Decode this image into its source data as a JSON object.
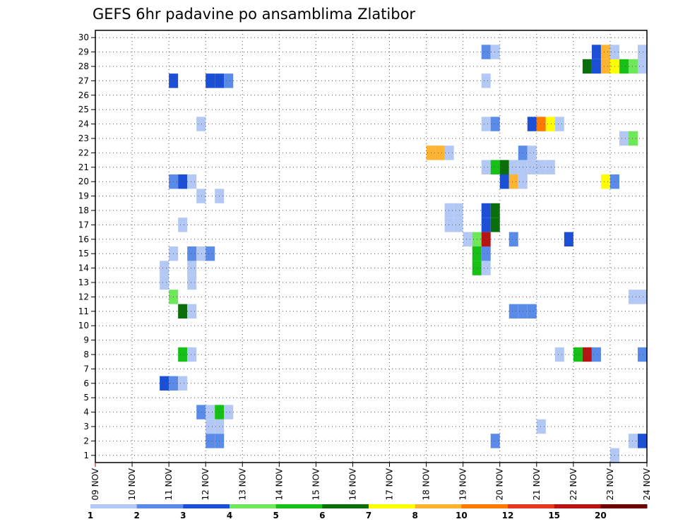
{
  "chart_data": {
    "type": "heatmap",
    "title": "GEFS 6hr padavine po ansamblima Zlatibor",
    "x_tick_labels": [
      "09 NOV",
      "10 NOV",
      "11 NOV",
      "12 NOV",
      "13 NOV",
      "14 NOV",
      "15 NOV",
      "16 NOV",
      "17 NOV",
      "18 NOV",
      "19 NOV",
      "20 NOV",
      "21 NOV",
      "22 NOV",
      "23 NOV",
      "24 NOV"
    ],
    "y_tick_labels": [
      "1",
      "2",
      "3",
      "4",
      "5",
      "6",
      "7",
      "8",
      "9",
      "10",
      "11",
      "12",
      "13",
      "14",
      "15",
      "16",
      "17",
      "18",
      "19",
      "20",
      "21",
      "22",
      "23",
      "24",
      "25",
      "26",
      "27",
      "28",
      "29",
      "30"
    ],
    "xlim_days": [
      0,
      15
    ],
    "ylim": [
      0.5,
      30.5
    ],
    "grid": true,
    "colorbar": {
      "labels": [
        "1",
        "2",
        "3",
        "4",
        "5",
        "6",
        "7",
        "8",
        "10",
        "12",
        "15",
        "20"
      ],
      "colors": [
        "#b3c8f5",
        "#5b8be8",
        "#1a4fd6",
        "#6ee85a",
        "#16c016",
        "#0a6e0a",
        "#ffff00",
        "#ffb431",
        "#ff7a00",
        "#e63a1e",
        "#b81414",
        "#6e0000"
      ]
    },
    "cells": [
      {
        "day": 2.0,
        "m": 27,
        "c": "#1a4fd6"
      },
      {
        "day": 3.0,
        "m": 27,
        "c": "#1a4fd6"
      },
      {
        "day": 3.25,
        "m": 27,
        "c": "#1a4fd6"
      },
      {
        "day": 3.5,
        "m": 27,
        "c": "#5b8be8"
      },
      {
        "day": 2.75,
        "m": 24,
        "c": "#b3c8f5"
      },
      {
        "day": 2.0,
        "m": 20,
        "c": "#5b8be8"
      },
      {
        "day": 2.25,
        "m": 20,
        "c": "#1a4fd6"
      },
      {
        "day": 2.5,
        "m": 20,
        "c": "#b3c8f5"
      },
      {
        "day": 2.75,
        "m": 19,
        "c": "#b3c8f5"
      },
      {
        "day": 3.25,
        "m": 19,
        "c": "#b3c8f5"
      },
      {
        "day": 2.25,
        "m": 17,
        "c": "#b3c8f5"
      },
      {
        "day": 2.0,
        "m": 15,
        "c": "#b3c8f5"
      },
      {
        "day": 2.5,
        "m": 15,
        "c": "#5b8be8"
      },
      {
        "day": 2.75,
        "m": 15,
        "c": "#b3c8f5"
      },
      {
        "day": 3.0,
        "m": 15,
        "c": "#5b8be8"
      },
      {
        "day": 1.75,
        "m": 14,
        "c": "#b3c8f5"
      },
      {
        "day": 2.5,
        "m": 14,
        "c": "#b3c8f5"
      },
      {
        "day": 1.75,
        "m": 13,
        "c": "#b3c8f5"
      },
      {
        "day": 2.5,
        "m": 13,
        "c": "#b3c8f5"
      },
      {
        "day": 2.0,
        "m": 12,
        "c": "#6ee85a"
      },
      {
        "day": 2.25,
        "m": 11,
        "c": "#0a6e0a"
      },
      {
        "day": 2.5,
        "m": 11,
        "c": "#b3c8f5"
      },
      {
        "day": 2.25,
        "m": 8,
        "c": "#16c016"
      },
      {
        "day": 2.5,
        "m": 8,
        "c": "#b3c8f5"
      },
      {
        "day": 1.75,
        "m": 6,
        "c": "#1a4fd6"
      },
      {
        "day": 2.0,
        "m": 6,
        "c": "#5b8be8"
      },
      {
        "day": 2.25,
        "m": 6,
        "c": "#b3c8f5"
      },
      {
        "day": 2.75,
        "m": 4,
        "c": "#5b8be8"
      },
      {
        "day": 3.0,
        "m": 4,
        "c": "#b3c8f5"
      },
      {
        "day": 3.25,
        "m": 4,
        "c": "#16c016"
      },
      {
        "day": 3.5,
        "m": 4,
        "c": "#b3c8f5"
      },
      {
        "day": 3.0,
        "m": 3,
        "c": "#b3c8f5"
      },
      {
        "day": 3.25,
        "m": 3,
        "c": "#b3c8f5"
      },
      {
        "day": 3.0,
        "m": 2,
        "c": "#5b8be8"
      },
      {
        "day": 3.25,
        "m": 2,
        "c": "#5b8be8"
      },
      {
        "day": 9.0,
        "m": 22,
        "c": "#ffb431"
      },
      {
        "day": 9.25,
        "m": 22,
        "c": "#ffb431"
      },
      {
        "day": 9.5,
        "m": 22,
        "c": "#b3c8f5"
      },
      {
        "day": 9.5,
        "m": 18,
        "c": "#b3c8f5"
      },
      {
        "day": 9.75,
        "m": 18,
        "c": "#b3c8f5"
      },
      {
        "day": 9.5,
        "m": 17,
        "c": "#b3c8f5"
      },
      {
        "day": 9.75,
        "m": 17,
        "c": "#b3c8f5"
      },
      {
        "day": 10.0,
        "m": 16,
        "c": "#b3c8f5"
      },
      {
        "day": 10.25,
        "m": 16,
        "c": "#6ee85a"
      },
      {
        "day": 10.5,
        "m": 16,
        "c": "#b81414"
      },
      {
        "day": 10.5,
        "m": 18,
        "c": "#1a4fd6"
      },
      {
        "day": 10.75,
        "m": 18,
        "c": "#0a6e0a"
      },
      {
        "day": 10.5,
        "m": 17,
        "c": "#1a4fd6"
      },
      {
        "day": 10.75,
        "m": 17,
        "c": "#0a6e0a"
      },
      {
        "day": 10.25,
        "m": 15,
        "c": "#16c016"
      },
      {
        "day": 10.5,
        "m": 15,
        "c": "#5b8be8"
      },
      {
        "day": 10.25,
        "m": 14,
        "c": "#16c016"
      },
      {
        "day": 10.5,
        "m": 14,
        "c": "#b3c8f5"
      },
      {
        "day": 10.5,
        "m": 29,
        "c": "#5b8be8"
      },
      {
        "day": 10.75,
        "m": 29,
        "c": "#b3c8f5"
      },
      {
        "day": 10.5,
        "m": 27,
        "c": "#b3c8f5"
      },
      {
        "day": 10.5,
        "m": 24,
        "c": "#b3c8f5"
      },
      {
        "day": 10.75,
        "m": 24,
        "c": "#5b8be8"
      },
      {
        "day": 10.5,
        "m": 21,
        "c": "#b3c8f5"
      },
      {
        "day": 10.75,
        "m": 21,
        "c": "#16c016"
      },
      {
        "day": 11.0,
        "m": 21,
        "c": "#0a6e0a"
      },
      {
        "day": 11.25,
        "m": 21,
        "c": "#b3c8f5"
      },
      {
        "day": 11.5,
        "m": 21,
        "c": "#b3c8f5"
      },
      {
        "day": 11.75,
        "m": 21,
        "c": "#b3c8f5"
      },
      {
        "day": 12.0,
        "m": 21,
        "c": "#b3c8f5"
      },
      {
        "day": 12.25,
        "m": 21,
        "c": "#b3c8f5"
      },
      {
        "day": 11.5,
        "m": 22,
        "c": "#5b8be8"
      },
      {
        "day": 11.75,
        "m": 22,
        "c": "#b3c8f5"
      },
      {
        "day": 11.0,
        "m": 20,
        "c": "#1a4fd6"
      },
      {
        "day": 11.25,
        "m": 20,
        "c": "#ffb431"
      },
      {
        "day": 11.5,
        "m": 20,
        "c": "#b3c8f5"
      },
      {
        "day": 11.25,
        "m": 16,
        "c": "#5b8be8"
      },
      {
        "day": 11.25,
        "m": 11,
        "c": "#5b8be8"
      },
      {
        "day": 11.5,
        "m": 11,
        "c": "#5b8be8"
      },
      {
        "day": 11.75,
        "m": 11,
        "c": "#5b8be8"
      },
      {
        "day": 10.75,
        "m": 2,
        "c": "#5b8be8"
      },
      {
        "day": 11.75,
        "m": 24,
        "c": "#1a4fd6"
      },
      {
        "day": 12.0,
        "m": 24,
        "c": "#ff7a00"
      },
      {
        "day": 12.25,
        "m": 24,
        "c": "#ffff00"
      },
      {
        "day": 12.5,
        "m": 24,
        "c": "#b3c8f5"
      },
      {
        "day": 12.75,
        "m": 16,
        "c": "#1a4fd6"
      },
      {
        "day": 12.0,
        "m": 3,
        "c": "#b3c8f5"
      },
      {
        "day": 12.5,
        "m": 8,
        "c": "#b3c8f5"
      },
      {
        "day": 13.0,
        "m": 8,
        "c": "#16c016"
      },
      {
        "day": 13.25,
        "m": 8,
        "c": "#b81414"
      },
      {
        "day": 13.5,
        "m": 8,
        "c": "#5b8be8"
      },
      {
        "day": 13.25,
        "m": 28,
        "c": "#0a6e0a"
      },
      {
        "day": 13.5,
        "m": 28,
        "c": "#1a4fd6"
      },
      {
        "day": 13.75,
        "m": 28,
        "c": "#ffb431"
      },
      {
        "day": 14.0,
        "m": 28,
        "c": "#ffff00"
      },
      {
        "day": 14.25,
        "m": 28,
        "c": "#16c016"
      },
      {
        "day": 14.5,
        "m": 28,
        "c": "#6ee85a"
      },
      {
        "day": 14.75,
        "m": 28,
        "c": "#b3c8f5"
      },
      {
        "day": 13.5,
        "m": 29,
        "c": "#1a4fd6"
      },
      {
        "day": 13.75,
        "m": 29,
        "c": "#ffb431"
      },
      {
        "day": 14.0,
        "m": 29,
        "c": "#b3c8f5"
      },
      {
        "day": 14.75,
        "m": 29,
        "c": "#b3c8f5"
      },
      {
        "day": 14.25,
        "m": 23,
        "c": "#b3c8f5"
      },
      {
        "day": 14.5,
        "m": 23,
        "c": "#6ee85a"
      },
      {
        "day": 13.75,
        "m": 20,
        "c": "#ffff00"
      },
      {
        "day": 14.0,
        "m": 20,
        "c": "#5b8be8"
      },
      {
        "day": 14.5,
        "m": 12,
        "c": "#b3c8f5"
      },
      {
        "day": 14.75,
        "m": 12,
        "c": "#b3c8f5"
      },
      {
        "day": 14.75,
        "m": 8,
        "c": "#5b8be8"
      },
      {
        "day": 14.5,
        "m": 2,
        "c": "#b3c8f5"
      },
      {
        "day": 14.75,
        "m": 2,
        "c": "#1a4fd6"
      },
      {
        "day": 14.0,
        "m": 1,
        "c": "#b3c8f5"
      }
    ]
  }
}
